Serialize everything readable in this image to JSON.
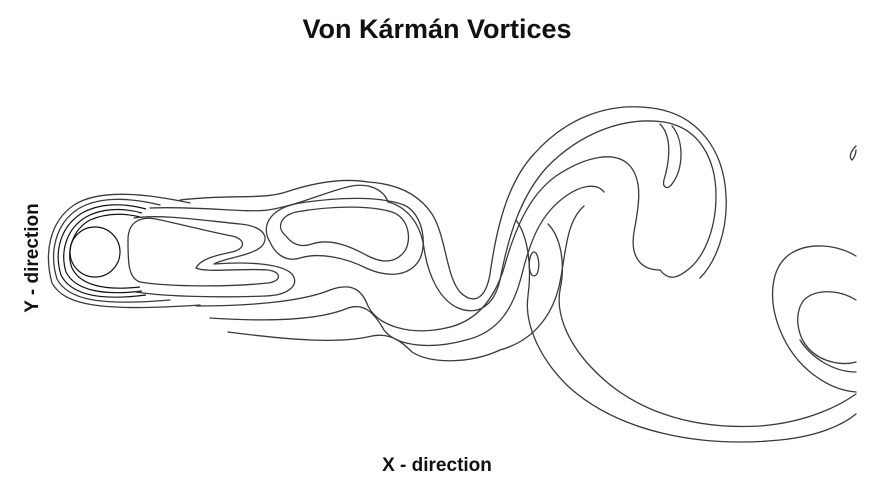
{
  "figure": {
    "title": "Von Kármán Vortices",
    "xlabel": "X - direction",
    "ylabel": "Y - direction"
  },
  "colors": {
    "background": "#ffffff",
    "contour": "#3a3a3a",
    "text": "#111111"
  }
}
